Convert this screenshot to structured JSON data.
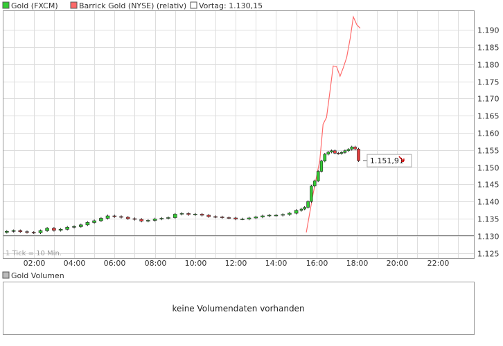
{
  "legend": {
    "gold": "Gold (FXCM)",
    "barrick": "Barrick Gold (NYSE) (relativ)",
    "vortag": "Vortag: 1.130,15"
  },
  "chart": {
    "tick_note": "1 Tick = 10 Min.",
    "last_value_label": "1.151,91"
  },
  "volume_panel": {
    "legend": "Gold Volumen",
    "message": "keine Volumendaten vorhanden"
  },
  "colors": {
    "up_candle": "#33cc33",
    "down_candle": "#e84040",
    "barrick_line": "#ff6a6a",
    "grid": "#dddddd",
    "vortag_line": "#808080",
    "down_arrow": "#cc0000"
  },
  "chart_data": {
    "type": "candlestick",
    "x_unit": "time (hours of day)",
    "xlim_hours": [
      0.5,
      23.8
    ],
    "x_ticks": [
      "02:00",
      "04:00",
      "06:00",
      "08:00",
      "10:00",
      "12:00",
      "14:00",
      "16:00",
      "18:00",
      "20:00",
      "22:00"
    ],
    "y_ticks": [
      "1.125",
      "1.130",
      "1.135",
      "1.140",
      "1.145",
      "1.150",
      "1.155",
      "1.160",
      "1.165",
      "1.170",
      "1.175",
      "1.180",
      "1.185",
      "1.190"
    ],
    "ylim": [
      1123.5,
      1195.5
    ],
    "vortag": 1130.15,
    "last": 1151.91,
    "gold_series": {
      "name": "Gold (FXCM)",
      "close_points": [
        [
          0.5,
          1131.0
        ],
        [
          0.83,
          1131.3
        ],
        [
          1.17,
          1131.5
        ],
        [
          1.5,
          1131.2
        ],
        [
          1.83,
          1131.0
        ],
        [
          2.17,
          1130.9
        ],
        [
          2.5,
          1131.5
        ],
        [
          2.83,
          1132.2
        ],
        [
          3.17,
          1131.6
        ],
        [
          3.5,
          1131.9
        ],
        [
          3.83,
          1132.5
        ],
        [
          4.17,
          1132.7
        ],
        [
          4.5,
          1133.2
        ],
        [
          4.83,
          1133.9
        ],
        [
          5.17,
          1134.4
        ],
        [
          5.5,
          1135.1
        ],
        [
          5.83,
          1135.8
        ],
        [
          6.17,
          1135.6
        ],
        [
          6.5,
          1135.4
        ],
        [
          6.83,
          1135.0
        ],
        [
          7.17,
          1134.8
        ],
        [
          7.5,
          1134.3
        ],
        [
          7.83,
          1134.5
        ],
        [
          8.17,
          1134.9
        ],
        [
          8.5,
          1135.1
        ],
        [
          8.83,
          1135.3
        ],
        [
          9.17,
          1136.3
        ],
        [
          9.5,
          1136.5
        ],
        [
          9.83,
          1136.2
        ],
        [
          10.17,
          1136.3
        ],
        [
          10.5,
          1136.0
        ],
        [
          10.83,
          1135.6
        ],
        [
          11.17,
          1135.5
        ],
        [
          11.5,
          1135.3
        ],
        [
          11.83,
          1135.2
        ],
        [
          12.17,
          1134.9
        ],
        [
          12.5,
          1134.9
        ],
        [
          12.83,
          1135.2
        ],
        [
          13.17,
          1135.5
        ],
        [
          13.5,
          1135.8
        ],
        [
          13.83,
          1136.0
        ],
        [
          14.17,
          1136.0
        ],
        [
          14.5,
          1136.2
        ],
        [
          14.83,
          1136.6
        ],
        [
          15.17,
          1137.4
        ],
        [
          15.33,
          1137.8
        ],
        [
          15.5,
          1138.3
        ],
        [
          15.67,
          1140.0
        ],
        [
          15.83,
          1144.5
        ],
        [
          16.0,
          1146.0
        ],
        [
          16.17,
          1148.8
        ],
        [
          16.33,
          1151.8
        ],
        [
          16.5,
          1153.8
        ],
        [
          16.67,
          1154.4
        ],
        [
          16.83,
          1154.8
        ],
        [
          17.0,
          1154.1
        ],
        [
          17.17,
          1154.0
        ],
        [
          17.33,
          1154.3
        ],
        [
          17.5,
          1154.8
        ],
        [
          17.67,
          1155.2
        ],
        [
          17.83,
          1155.9
        ],
        [
          18.0,
          1155.3
        ],
        [
          18.17,
          1151.9
        ]
      ]
    },
    "barrick_series": {
      "name": "Barrick Gold (NYSE) (relativ)",
      "points": [
        [
          15.5,
          1131.0
        ],
        [
          15.83,
          1142.0
        ],
        [
          16.17,
          1152.0
        ],
        [
          16.33,
          1162.5
        ],
        [
          16.5,
          1164.5
        ],
        [
          16.67,
          1172.0
        ],
        [
          16.83,
          1179.5
        ],
        [
          17.0,
          1179.3
        ],
        [
          17.17,
          1176.5
        ],
        [
          17.33,
          1179.0
        ],
        [
          17.5,
          1182.0
        ],
        [
          17.67,
          1187.5
        ],
        [
          17.83,
          1193.8
        ],
        [
          18.0,
          1191.5
        ],
        [
          18.17,
          1190.5
        ]
      ]
    }
  }
}
